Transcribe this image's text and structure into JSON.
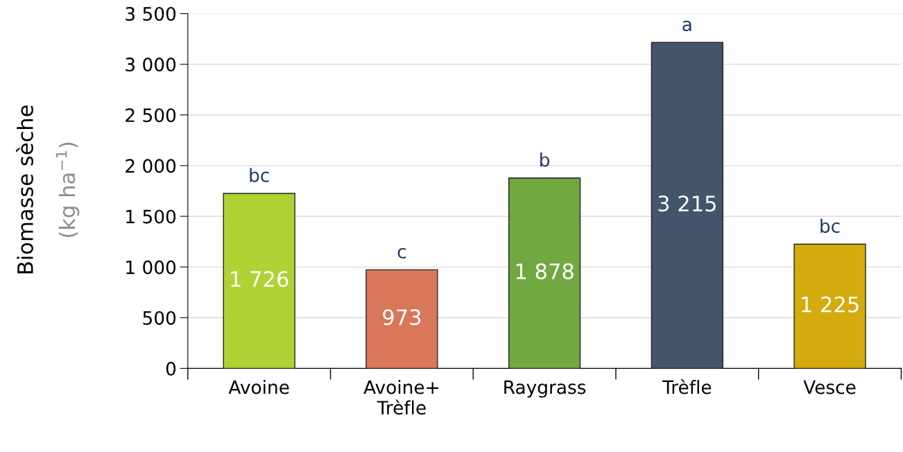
{
  "chart_data": {
    "type": "bar",
    "ylabel": "Biomasse sèche",
    "y2label": "(kg ha$^{−1}$)",
    "categories": [
      "Avoine",
      "Avoine+\nTrèfle",
      "Raygrass",
      "Trèfle",
      "Vesce"
    ],
    "values": [
      1726,
      973,
      1878,
      3215,
      1225
    ],
    "colors": [
      "#b0d235",
      "#d8775a",
      "#72a840",
      "#44546a",
      "#d3ab0e"
    ],
    "value_labels": [
      "1 726",
      "973",
      "1 878",
      "3 215",
      "1 225"
    ],
    "ylim": [
      0,
      3500
    ],
    "yticks": [
      {
        "value": 0,
        "label": "0"
      },
      {
        "value": 500,
        "label": "500"
      },
      {
        "value": 1000,
        "label": "1 000"
      },
      {
        "value": 1500,
        "label": "1 500"
      },
      {
        "value": 2000,
        "label": "2 000"
      },
      {
        "value": 2500,
        "label": "2 500"
      },
      {
        "value": 3000,
        "label": "3 000"
      },
      {
        "value": 3500,
        "label": "3 500"
      }
    ],
    "grid": "y",
    "annotations": [
      {
        "text": "bc",
        "x": "Avoine",
        "y": 1726
      },
      {
        "text": "c",
        "x": "Avoine+\nTrèfle",
        "y": 973
      },
      {
        "text": "b",
        "x": "Raygrass",
        "y": 1878
      },
      {
        "text": "a",
        "x": "Trèfle",
        "y": 3215
      },
      {
        "text": "bc",
        "x": "Vesce",
        "y": 1225
      }
    ]
  }
}
